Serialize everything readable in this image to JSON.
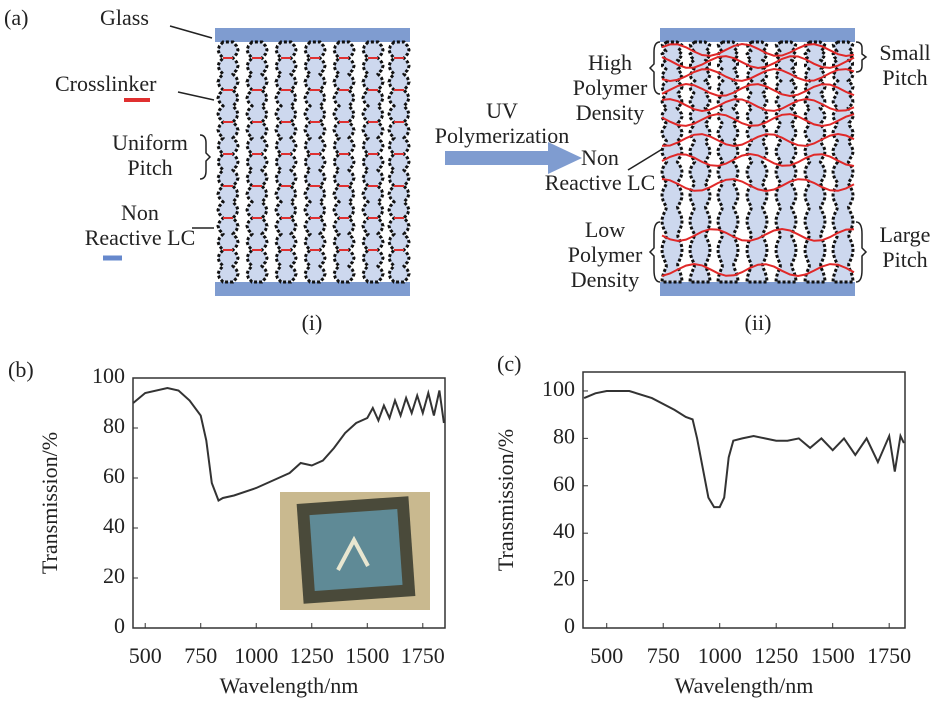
{
  "diagram": {
    "panel_label": "(a)",
    "labels": [
      {
        "lines": [
          "Glass"
        ]
      },
      {
        "lines": [
          "Crosslinker"
        ]
      },
      {
        "lines": [
          "Uniform",
          "Pitch"
        ]
      },
      {
        "lines": [
          "Non",
          "Reactive LC"
        ]
      },
      {
        "lines": [
          "UV",
          "Polymerization"
        ]
      },
      {
        "lines": [
          "(i)"
        ]
      },
      {
        "lines": [
          "(ii)"
        ]
      },
      {
        "lines": [
          "High",
          "Polymer",
          "Density"
        ]
      },
      {
        "lines": [
          "Non",
          "Reactive LC"
        ]
      },
      {
        "lines": [
          "Low",
          "Polymer",
          "Density"
        ]
      },
      {
        "lines": [
          "Small",
          "Pitch"
        ]
      },
      {
        "lines": [
          "Large",
          "Pitch"
        ]
      }
    ]
  },
  "chart_data": [
    {
      "type": "line",
      "panel_label": "(b)",
      "x_label": "Wavelength/nm",
      "y_label": "Transmission/%",
      "x": [
        446,
        500,
        600,
        650,
        700,
        750,
        775,
        800,
        830,
        850,
        900,
        1000,
        1100,
        1150,
        1200,
        1250,
        1300,
        1350,
        1400,
        1450,
        1500,
        1525,
        1550,
        1575,
        1600,
        1625,
        1650,
        1675,
        1700,
        1725,
        1750,
        1775,
        1800,
        1825,
        1845
      ],
      "series": [
        {
          "color": "#333333",
          "values": [
            90,
            94,
            96,
            95,
            91,
            85,
            75,
            58,
            51,
            52,
            53,
            56,
            60,
            62,
            66,
            65,
            67,
            72,
            78,
            82,
            84,
            88,
            83,
            89,
            84,
            91,
            85,
            92,
            86,
            93,
            86,
            94,
            85,
            95,
            82
          ]
        }
      ],
      "xlim": [
        445,
        1850
      ],
      "ylim": [
        0,
        100
      ],
      "xticks": [
        500,
        750,
        1000,
        1250,
        1500,
        1750
      ],
      "yticks": [
        0,
        20,
        40,
        60,
        80,
        100
      ]
    },
    {
      "type": "line",
      "panel_label": "(c)",
      "x_label": "Wavelength/nm",
      "y_label": "Transmission/%",
      "x": [
        400,
        450,
        500,
        600,
        700,
        800,
        850,
        880,
        900,
        920,
        950,
        975,
        1000,
        1020,
        1040,
        1060,
        1100,
        1150,
        1200,
        1250,
        1300,
        1350,
        1400,
        1450,
        1500,
        1550,
        1600,
        1650,
        1700,
        1750,
        1775,
        1800,
        1815
      ],
      "series": [
        {
          "color": "#333333",
          "values": [
            97,
            99,
            100,
            100,
            97,
            92,
            89,
            88,
            80,
            70,
            55,
            51,
            51,
            55,
            72,
            79,
            80,
            81,
            80,
            79,
            79,
            80,
            76,
            80,
            75,
            80,
            73,
            80,
            70,
            81,
            66,
            81,
            78
          ]
        }
      ],
      "xlim": [
        395,
        1820
      ],
      "ylim": [
        0,
        108
      ],
      "xticks": [
        500,
        750,
        1000,
        1250,
        1500,
        1750
      ],
      "yticks": [
        0,
        20,
        40,
        60,
        80,
        100
      ]
    }
  ]
}
